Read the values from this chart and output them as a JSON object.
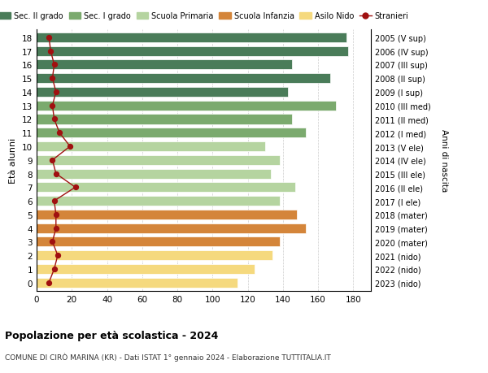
{
  "ages": [
    18,
    17,
    16,
    15,
    14,
    13,
    12,
    11,
    10,
    9,
    8,
    7,
    6,
    5,
    4,
    3,
    2,
    1,
    0
  ],
  "right_labels": [
    "2005 (V sup)",
    "2006 (IV sup)",
    "2007 (III sup)",
    "2008 (II sup)",
    "2009 (I sup)",
    "2010 (III med)",
    "2011 (II med)",
    "2012 (I med)",
    "2013 (V ele)",
    "2014 (IV ele)",
    "2015 (III ele)",
    "2016 (II ele)",
    "2017 (I ele)",
    "2018 (mater)",
    "2019 (mater)",
    "2020 (mater)",
    "2021 (nido)",
    "2022 (nido)",
    "2023 (nido)"
  ],
  "bar_values": [
    176,
    177,
    145,
    167,
    143,
    170,
    145,
    153,
    130,
    138,
    133,
    147,
    138,
    148,
    153,
    138,
    134,
    124,
    114
  ],
  "bar_colors": [
    "#4a7c59",
    "#4a7c59",
    "#4a7c59",
    "#4a7c59",
    "#4a7c59",
    "#7baa6e",
    "#7baa6e",
    "#7baa6e",
    "#b5d4a0",
    "#b5d4a0",
    "#b5d4a0",
    "#b5d4a0",
    "#b5d4a0",
    "#d4853a",
    "#d4853a",
    "#d4853a",
    "#f5d97e",
    "#f5d97e",
    "#f5d97e"
  ],
  "stranieri_values": [
    7,
    8,
    10,
    9,
    11,
    9,
    10,
    13,
    19,
    9,
    11,
    22,
    10,
    11,
    11,
    9,
    12,
    10,
    7
  ],
  "title": "Popolazione per età scolastica - 2024",
  "subtitle": "COMUNE DI CIRÒ MARINA (KR) - Dati ISTAT 1° gennaio 2024 - Elaborazione TUTTITALIA.IT",
  "ylabel_label": "Età alunni",
  "right_axis_label": "Anni di nascita",
  "xlim": [
    0,
    190
  ],
  "xticks": [
    0,
    20,
    40,
    60,
    80,
    100,
    120,
    140,
    160,
    180
  ],
  "legend_items": [
    {
      "label": "Sec. II grado",
      "color": "#4a7c59"
    },
    {
      "label": "Sec. I grado",
      "color": "#7baa6e"
    },
    {
      "label": "Scuola Primaria",
      "color": "#b5d4a0"
    },
    {
      "label": "Scuola Infanzia",
      "color": "#d4853a"
    },
    {
      "label": "Asilo Nido",
      "color": "#f5d97e"
    },
    {
      "label": "Stranieri",
      "color": "#a01010"
    }
  ],
  "bar_height": 0.72,
  "background_color": "#ffffff",
  "grid_color": "#cccccc"
}
